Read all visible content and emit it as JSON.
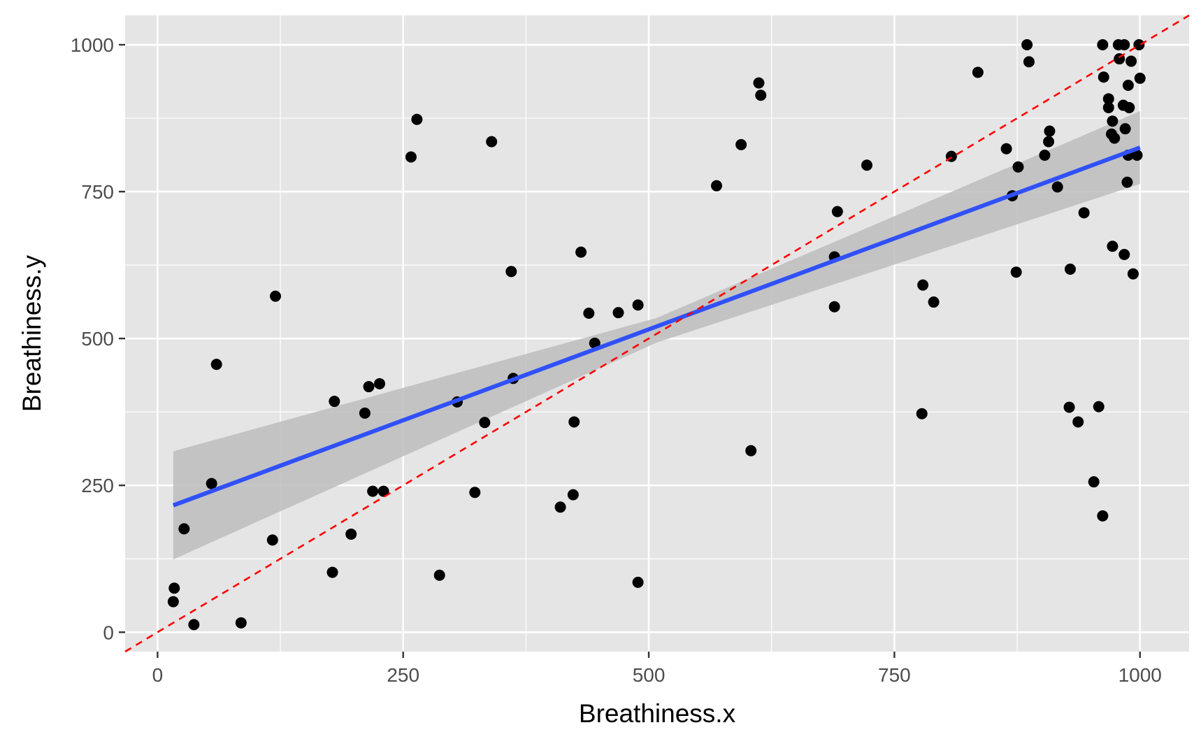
{
  "chart_data": {
    "type": "scatter",
    "title": "",
    "xlabel": "Breathiness.x",
    "ylabel": "Breathiness.y",
    "xlim": [
      -33,
      1050
    ],
    "ylim": [
      -33,
      1050
    ],
    "x_ticks": [
      0,
      250,
      500,
      750,
      1000
    ],
    "y_ticks": [
      0,
      250,
      500,
      750,
      1000
    ],
    "grid": true,
    "legend": "none",
    "colors": {
      "panel_background": "#e5e5e5",
      "grid": "#ffffff",
      "points": "#000000",
      "fit_line": "#3050f8",
      "confidence_band": "#bdbdbd",
      "identity_line": "#ff0000"
    },
    "points": [
      [
        17,
        75
      ],
      [
        16,
        52
      ],
      [
        37,
        13
      ],
      [
        27,
        176
      ],
      [
        55,
        253
      ],
      [
        60,
        456
      ],
      [
        85,
        16
      ],
      [
        117,
        157
      ],
      [
        120,
        572
      ],
      [
        178,
        102
      ],
      [
        180,
        393
      ],
      [
        197,
        167
      ],
      [
        211,
        373
      ],
      [
        215,
        418
      ],
      [
        219,
        240
      ],
      [
        226,
        423
      ],
      [
        230,
        240
      ],
      [
        258,
        809
      ],
      [
        264,
        873
      ],
      [
        287,
        97
      ],
      [
        305,
        392
      ],
      [
        323,
        238
      ],
      [
        333,
        357
      ],
      [
        340,
        835
      ],
      [
        360,
        614
      ],
      [
        362,
        432
      ],
      [
        410,
        213
      ],
      [
        423,
        234
      ],
      [
        424,
        358
      ],
      [
        431,
        647
      ],
      [
        439,
        543
      ],
      [
        445,
        492
      ],
      [
        469,
        544
      ],
      [
        489,
        557
      ],
      [
        489,
        85
      ],
      [
        569,
        760
      ],
      [
        594,
        830
      ],
      [
        604,
        309
      ],
      [
        612,
        935
      ],
      [
        614,
        914
      ],
      [
        689,
        639
      ],
      [
        689,
        554
      ],
      [
        692,
        716
      ],
      [
        722,
        795
      ],
      [
        778,
        372
      ],
      [
        779,
        591
      ],
      [
        790,
        562
      ],
      [
        808,
        810
      ],
      [
        835,
        953
      ],
      [
        864,
        823
      ],
      [
        870,
        743
      ],
      [
        874,
        613
      ],
      [
        876,
        792
      ],
      [
        885,
        1000
      ],
      [
        887,
        971
      ],
      [
        903,
        812
      ],
      [
        907,
        835
      ],
      [
        908,
        853
      ],
      [
        916,
        758
      ],
      [
        928,
        383
      ],
      [
        929,
        618
      ],
      [
        937,
        358
      ],
      [
        943,
        714
      ],
      [
        953,
        256
      ],
      [
        958,
        384
      ],
      [
        962,
        198
      ],
      [
        962,
        1000
      ],
      [
        963,
        945
      ],
      [
        968,
        908
      ],
      [
        968,
        893
      ],
      [
        971,
        848
      ],
      [
        972,
        870
      ],
      [
        972,
        657
      ],
      [
        974,
        841
      ],
      [
        978,
        1000
      ],
      [
        979,
        976
      ],
      [
        983,
        897
      ],
      [
        984,
        643
      ],
      [
        984,
        1000
      ],
      [
        985,
        857
      ],
      [
        987,
        766
      ],
      [
        988,
        812
      ],
      [
        988,
        931
      ],
      [
        989,
        893
      ],
      [
        991,
        972
      ],
      [
        993,
        610
      ],
      [
        997,
        812
      ],
      [
        999,
        1000
      ],
      [
        1000,
        943
      ]
    ],
    "fit_line": {
      "x": [
        16,
        1000
      ],
      "y": [
        216,
        825
      ]
    },
    "confidence_band": {
      "x": [
        16,
        508,
        1000
      ],
      "lower": [
        124,
        493,
        763
      ],
      "upper": [
        308,
        535,
        887
      ]
    },
    "identity_line": {
      "x": [
        -33,
        1050
      ],
      "y": [
        -33,
        1050
      ]
    }
  }
}
